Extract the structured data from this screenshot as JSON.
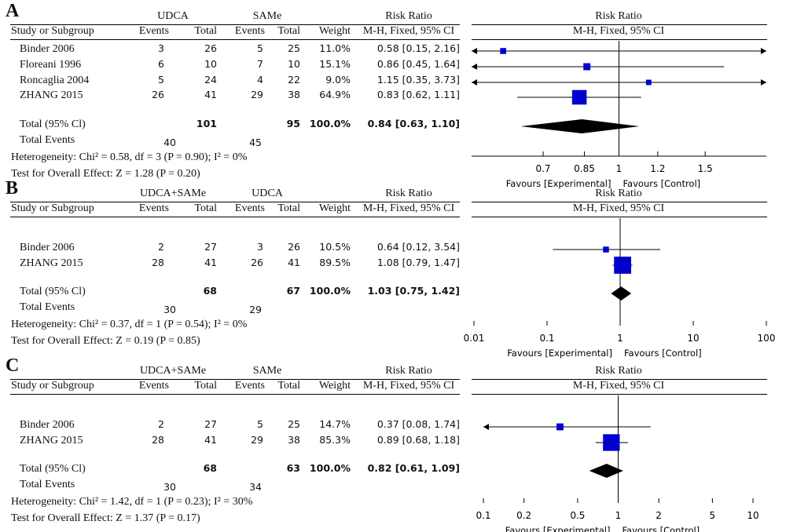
{
  "headers": {
    "study_or_subgroup": "Study or Subgroup",
    "events": "Events",
    "total": "Total",
    "weight": "Weight",
    "risk_ratio": "Risk Ratio",
    "method": "M-H, Fixed, 95% CI",
    "total_events": "Total Events"
  },
  "chart_data": [
    {
      "type": "forest",
      "panel_label": "A",
      "group1": "UDCA",
      "group2": "SAMe",
      "show_weight": true,
      "scale": "log",
      "xlim": [
        0.5,
        2.0
      ],
      "ticks": [
        "0.7",
        "0.85",
        "1",
        "1.2",
        "1.5"
      ],
      "tick_values": [
        0.7,
        0.85,
        1,
        1.2,
        1.5
      ],
      "favours_left": "Favours [Experimental]",
      "favours_right": "Favours [Control]",
      "studies": [
        {
          "name": "Binder 2006",
          "e1": "3",
          "n1": "26",
          "e2": "5",
          "n2": "25",
          "weight": "11.0%",
          "ci_text": "0.58 [0.15, 2.16]",
          "rr": 0.58,
          "lo": 0.15,
          "hi": 2.16,
          "w": 11.0
        },
        {
          "name": "Floreani 1996",
          "e1": "6",
          "n1": "10",
          "e2": "7",
          "n2": "10",
          "weight": "15.1%",
          "ci_text": "0.86 [0.45, 1.64]",
          "rr": 0.86,
          "lo": 0.45,
          "hi": 1.64,
          "w": 15.1
        },
        {
          "name": "Roncaglia 2004",
          "e1": "5",
          "n1": "24",
          "e2": "4",
          "n2": "22",
          "weight": "9.0%",
          "ci_text": "1.15 [0.35, 3.73]",
          "rr": 1.15,
          "lo": 0.35,
          "hi": 3.73,
          "w": 9.0
        },
        {
          "name": "ZHANG 2015",
          "e1": "26",
          "n1": "41",
          "e2": "29",
          "n2": "38",
          "weight": "64.9%",
          "ci_text": "0.83 [0.62, 1.11]",
          "rr": 0.83,
          "lo": 0.62,
          "hi": 1.11,
          "w": 64.9
        }
      ],
      "total": {
        "label": "Total (95% Cl)",
        "n1": "101",
        "n2": "95",
        "weight": "100.0%",
        "ci_text": "0.84 [0.63, 1.10]",
        "rr": 0.84,
        "lo": 0.63,
        "hi": 1.1
      },
      "total_events": {
        "e1": "40",
        "e2": "45"
      },
      "heterogeneity": "Heterogeneity: Chi² = 0.58, df = 3 (P = 0.90); I² = 0%",
      "overall_effect": "Test for Overall Effect: Z = 1.28 (P = 0.20)"
    },
    {
      "type": "forest",
      "panel_label": "B",
      "group1": "UDCA+SAMe",
      "group2": "UDCA",
      "show_weight": true,
      "scale": "log",
      "xlim": [
        0.01,
        100
      ],
      "ticks": [
        "0.01",
        "0.1",
        "1",
        "10",
        "100"
      ],
      "tick_values": [
        0.01,
        0.1,
        1,
        10,
        100
      ],
      "favours_left": "Favours [Experimental]",
      "favours_right": "Favours [Control]",
      "studies": [
        {
          "name": "Binder 2006",
          "e1": "2",
          "n1": "27",
          "e2": "3",
          "n2": "26",
          "weight": "10.5%",
          "ci_text": "0.64 [0.12, 3.54]",
          "rr": 0.64,
          "lo": 0.12,
          "hi": 3.54,
          "w": 10.5
        },
        {
          "name": "ZHANG 2015",
          "e1": "28",
          "n1": "41",
          "e2": "26",
          "n2": "41",
          "weight": "89.5%",
          "ci_text": "1.08 [0.79, 1.47]",
          "rr": 1.08,
          "lo": 0.79,
          "hi": 1.47,
          "w": 89.5
        }
      ],
      "total": {
        "label": "Total (95% Cl)",
        "n1": "68",
        "n2": "67",
        "weight": "100.0%",
        "ci_text": "1.03 [0.75, 1.42]",
        "rr": 1.03,
        "lo": 0.75,
        "hi": 1.42
      },
      "total_events": {
        "e1": "30",
        "e2": "29"
      },
      "heterogeneity": "Heterogeneity: Chi² = 0.37, df = 1 (P = 0.54); I² = 0%",
      "overall_effect": "Test for Overall Effect: Z = 0.19 (P = 0.85)"
    },
    {
      "type": "forest",
      "panel_label": "C",
      "group1": "UDCA+SAMe",
      "group2": "SAMe",
      "show_weight": true,
      "scale": "log",
      "xlim": [
        0.1,
        10
      ],
      "ticks": [
        "0.1",
        "0.2",
        "0.5",
        "1",
        "2",
        "5",
        "10"
      ],
      "tick_values": [
        0.1,
        0.2,
        0.5,
        1,
        2,
        5,
        10
      ],
      "favours_left": "Favours [Experimental]",
      "favours_right": "Favours [Control]",
      "studies": [
        {
          "name": "Binder 2006",
          "e1": "2",
          "n1": "27",
          "e2": "5",
          "n2": "25",
          "weight": "14.7%",
          "ci_text": "0.37 [0.08, 1.74]",
          "rr": 0.37,
          "lo": 0.08,
          "hi": 1.74,
          "w": 14.7
        },
        {
          "name": "ZHANG 2015",
          "e1": "28",
          "n1": "41",
          "e2": "29",
          "n2": "38",
          "weight": "85.3%",
          "ci_text": "0.89 [0.68, 1.18]",
          "rr": 0.89,
          "lo": 0.68,
          "hi": 1.18,
          "w": 85.3
        }
      ],
      "total": {
        "label": "Total (95% Cl)",
        "n1": "68",
        "n2": "63",
        "weight": "100.0%",
        "ci_text": "0.82 [0.61, 1.09]",
        "rr": 0.82,
        "lo": 0.61,
        "hi": 1.09
      },
      "total_events": {
        "e1": "30",
        "e2": "34"
      },
      "heterogeneity": "Heterogeneity: Chi² = 1.42, df = 1 (P = 0.23); I² = 30%",
      "overall_effect": "Test for Overall Effect: Z = 1.37 (P = 0.17)"
    }
  ],
  "colors": {
    "study_marker": "#0000cc",
    "diamond": "#000000",
    "axis": "#000000"
  }
}
